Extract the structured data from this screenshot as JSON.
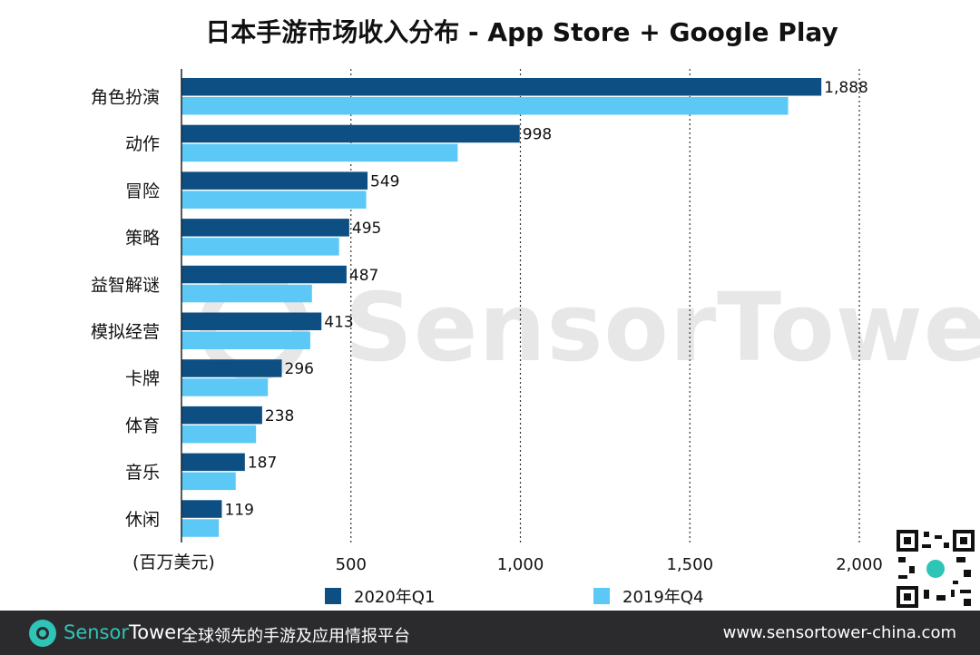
{
  "chart_data": {
    "type": "bar",
    "orientation": "horizontal",
    "title": "日本手游市场收入分布 - App Store + Google Play",
    "xlabel": "(百万美元)",
    "xlim": [
      0,
      2000
    ],
    "xticks": [
      500,
      1000,
      1500,
      2000
    ],
    "xtick_labels": [
      "500",
      "1,000",
      "1,500",
      "2,000"
    ],
    "grid": "vertical dotted",
    "legend_position": "bottom",
    "categories": [
      "角色扮演",
      "动作",
      "冒险",
      "策略",
      "益智解谜",
      "模拟经营",
      "卡牌",
      "体育",
      "音乐",
      "休闲"
    ],
    "series": [
      {
        "name": "2020年Q1",
        "color": "#0d4f82",
        "values": [
          1888,
          998,
          549,
          495,
          487,
          413,
          296,
          238,
          187,
          119
        ],
        "labels": [
          "1,888",
          "998",
          "549",
          "495",
          "487",
          "413",
          "296",
          "238",
          "187",
          "119"
        ]
      },
      {
        "name": "2019年Q4",
        "color": "#5bc8f5",
        "values": [
          1790,
          815,
          545,
          465,
          385,
          380,
          255,
          220,
          160,
          110
        ]
      }
    ]
  },
  "watermark": "SensorTower",
  "footer": {
    "brand_sensor": "Sensor",
    "brand_tower": "Tower",
    "slogan": "全球领先的手游及应用情报平台",
    "url": "www.sensortower-china.com"
  },
  "colors": {
    "footer_bg": "#2b2b2d",
    "brand_accent": "#2ec4b6"
  }
}
